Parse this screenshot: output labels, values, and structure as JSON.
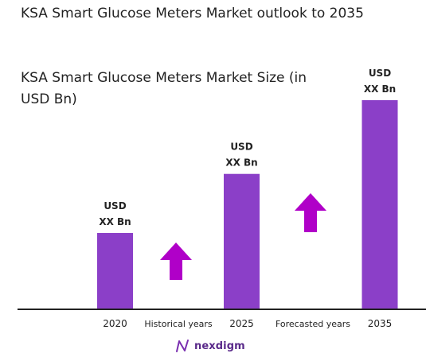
{
  "title": "KSA Smart Glucose Meters Market outlook to 2035",
  "subtitle": "KSA Smart Glucose Meters Market Size (in USD Bn)",
  "colors": {
    "bar": "#8b3fc8",
    "arrow": "#b000c8",
    "axis": "#222222"
  },
  "chart_data": {
    "type": "bar",
    "categories": [
      "2020",
      "2025",
      "2035"
    ],
    "values": [
      7.3,
      12.95,
      20
    ],
    "value_labels": [
      [
        "USD",
        "XX Bn"
      ],
      [
        "USD",
        "XX Bn"
      ],
      [
        "USD",
        "XX Bn"
      ]
    ],
    "ylim": [
      0,
      20
    ],
    "grid": false,
    "period_labels": [
      "Historical years",
      "Forecasted years"
    ],
    "arrow_icon": "up-arrow-icon"
  },
  "brand": {
    "name": "nexdigm",
    "icon": "nexdigm-logo-icon"
  }
}
